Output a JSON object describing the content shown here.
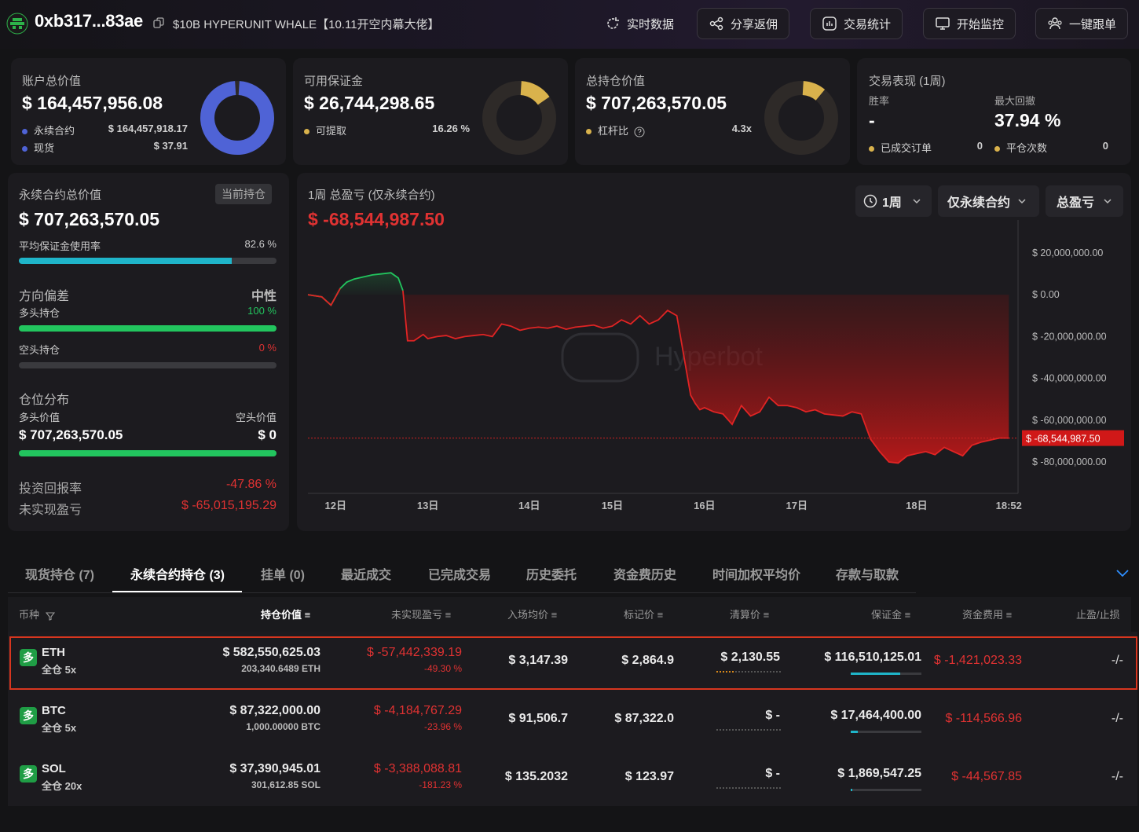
{
  "header": {
    "address": "0xb317...83ae",
    "label": "$10B HYPERUNIT WHALE【10.11开空内幕大佬】",
    "actions": {
      "realtime": "实时数据",
      "share": "分享返佣",
      "stats": "交易统计",
      "monitor": "开始监控",
      "copy_trade": "一键跟单"
    }
  },
  "summary": {
    "account": {
      "title": "账户总价值",
      "value": "$ 164,457,956.08",
      "perp_label": "永续合约",
      "perp_value": "$ 164,457,918.17",
      "spot_label": "现货",
      "spot_value": "$ 37.91",
      "donut_fraction": 0.9999
    },
    "margin": {
      "title": "可用保证金",
      "value": "$ 26,744,298.65",
      "withdrawable_label": "可提取",
      "withdrawable_pct": "16.26 %",
      "donut_fraction": 0.1626
    },
    "position": {
      "title": "总持仓价值",
      "value": "$ 707,263,570.05",
      "leverage_label": "杠杆比",
      "leverage_value": "4.3x",
      "donut_fraction": 0.12
    },
    "performance": {
      "title": "交易表现 (1周)",
      "winrate_label": "胜率",
      "winrate_value": "-",
      "drawdown_label": "最大回撤",
      "drawdown_value": "37.94 %",
      "filled_label": "已成交订单",
      "filled_value": "0",
      "closed_label": "平仓次数",
      "closed_value": "0"
    }
  },
  "perp_panel": {
    "title": "永续合约总价值",
    "tag": "当前持仓",
    "value": "$ 707,263,570.05",
    "margin_usage_label": "平均保证金使用率",
    "margin_usage_pct": "82.6 %",
    "margin_usage_fraction": 0.826,
    "direction_label": "方向偏差",
    "direction_value": "中性",
    "long_label": "多头持仓",
    "long_pct": "100 %",
    "long_fraction": 1.0,
    "short_label": "空头持仓",
    "short_pct": "0 %",
    "short_fraction": 0.0,
    "dist_label": "仓位分布",
    "long_value_label": "多头价值",
    "short_value_label": "空头价值",
    "long_value": "$ 707,263,570.05",
    "short_value": "$ 0",
    "roi_label": "投资回报率",
    "roi_value": "-47.86 %",
    "upnl_label": "未实现盈亏",
    "upnl_value": "$ -65,015,195.29"
  },
  "pnl_chart": {
    "title": "1周 总盈亏 (仅永续合约)",
    "value": "$ -68,544,987.50",
    "filters": {
      "period": "1周",
      "scope": "仅永续合约",
      "metric": "总盈亏"
    },
    "watermark": "Hyperbot",
    "current_label": "$ -68,544,987.50"
  },
  "chart_data": {
    "type": "area",
    "title": "1周 总盈亏 (仅永续合约)",
    "y_ticks": [
      "$ 20,000,000.00",
      "$ 0.00",
      "$ -20,000,000.00",
      "$ -40,000,000.00",
      "$ -60,000,000.00",
      "$ -80,000,000.00"
    ],
    "y_tick_values": [
      20000000,
      0,
      -20000000,
      -40000000,
      -60000000,
      -80000000
    ],
    "ylim": [
      -95000000,
      32000000
    ],
    "x_ticks": [
      "12日",
      "13日",
      "14日",
      "15日",
      "16日",
      "17日",
      "18日",
      "18:52"
    ],
    "x_tick_positions": [
      0.6,
      1.6,
      2.7,
      3.6,
      4.6,
      5.6,
      6.9,
      7.9
    ],
    "xlim": [
      0.3,
      8.0
    ],
    "series": [
      {
        "x": [
          0.3,
          0.45,
          0.55,
          0.65,
          0.72,
          0.8,
          0.9,
          1.0,
          1.1,
          1.2,
          1.28,
          1.33,
          1.38,
          1.45,
          1.55,
          1.6,
          1.7,
          1.8,
          1.9,
          2.0,
          2.1,
          2.2,
          2.3,
          2.4,
          2.5,
          2.6,
          2.7,
          2.8,
          2.9,
          3.0,
          3.1,
          3.2,
          3.3,
          3.4,
          3.5,
          3.6,
          3.7,
          3.8,
          3.9,
          4.0,
          4.1,
          4.2,
          4.3,
          4.45,
          4.5,
          4.55,
          4.6,
          4.7,
          4.8,
          4.9,
          5.0,
          5.1,
          5.2,
          5.3,
          5.4,
          5.5,
          5.6,
          5.7,
          5.8,
          5.9,
          6.0,
          6.1,
          6.2,
          6.3,
          6.4,
          6.5,
          6.6,
          6.7,
          6.8,
          6.9,
          7.0,
          7.1,
          7.2,
          7.3,
          7.4,
          7.5,
          7.6,
          7.7,
          7.8,
          7.9
        ],
        "y": [
          0,
          -1000000,
          -5000000,
          3000000,
          6000000,
          7500000,
          8500000,
          9500000,
          10000000,
          10500000,
          8000000,
          2000000,
          -22000000,
          -22000000,
          -19000000,
          -21000000,
          -20000000,
          -19500000,
          -21000000,
          -20000000,
          -19500000,
          -19000000,
          -20000000,
          -14000000,
          -15000000,
          -17000000,
          -16000000,
          -15500000,
          -16000000,
          -15000000,
          -16500000,
          -15500000,
          -15000000,
          -14500000,
          -16000000,
          -15000000,
          -12000000,
          -14000000,
          -10000000,
          -14000000,
          -12000000,
          -7500000,
          -10000000,
          -48000000,
          -52000000,
          -55000000,
          -54000000,
          -56000000,
          -57000000,
          -62000000,
          -53000000,
          -58000000,
          -56000000,
          -49000000,
          -53000000,
          -53000000,
          -54000000,
          -56000000,
          -55000000,
          -57000000,
          -57500000,
          -58000000,
          -56000000,
          -57000000,
          -69000000,
          -75000000,
          -80000000,
          -80500000,
          -77000000,
          -76000000,
          -75000000,
          -76500000,
          -73000000,
          -75000000,
          -77000000,
          -72000000,
          -70500000,
          -69500000,
          -68500000,
          -68544987.5
        ]
      }
    ],
    "green_until_x": 1.33,
    "current_value": -68544987.5
  },
  "tabs": [
    "现货持仓 (7)",
    "永续合约持仓 (3)",
    "挂单 (0)",
    "最近成交",
    "已完成交易",
    "历史委托",
    "资金费历史",
    "时间加权平均价",
    "存款与取款"
  ],
  "table": {
    "headers": {
      "coin": "币种",
      "value": "持仓价值",
      "upnl": "未实现盈亏",
      "entry": "入场均价",
      "mark": "标记价",
      "liq": "清算价",
      "margin": "保证金",
      "funding": "资金费用",
      "tpsl": "止盈/止损"
    },
    "rows": [
      {
        "side": "多",
        "coin": "ETH",
        "mode": "全仓 5x",
        "value": "$ 582,550,625.03",
        "size": "203,340.6489 ETH",
        "upnl": "$ -57,442,339.19",
        "upnl_pct": "-49.30 %",
        "entry": "$ 3,147.39",
        "mark": "$ 2,864.9",
        "liq": "$ 2,130.55",
        "margin": "$ 116,510,125.01",
        "margin_fraction": 0.7,
        "funding": "$ -1,421,023.33",
        "tpsl": "-/-"
      },
      {
        "side": "多",
        "coin": "BTC",
        "mode": "全仓 5x",
        "value": "$ 87,322,000.00",
        "size": "1,000.00000 BTC",
        "upnl": "$ -4,184,767.29",
        "upnl_pct": "-23.96 %",
        "entry": "$ 91,506.7",
        "mark": "$ 87,322.0",
        "liq": "$ -",
        "margin": "$ 17,464,400.00",
        "margin_fraction": 0.1,
        "funding": "$ -114,566.96",
        "tpsl": "-/-"
      },
      {
        "side": "多",
        "coin": "SOL",
        "mode": "全仓 20x",
        "value": "$ 37,390,945.01",
        "size": "301,612.85 SOL",
        "upnl": "$ -3,388,088.81",
        "upnl_pct": "-181.23 %",
        "entry": "$ 135.2032",
        "mark": "$ 123.97",
        "liq": "$ -",
        "margin": "$ 1,869,547.25",
        "margin_fraction": 0.02,
        "funding": "$ -44,567.85",
        "tpsl": "-/-"
      }
    ]
  },
  "colors": {
    "accent_blue": "#4f63d6",
    "gold": "#d9b24c",
    "green": "#22c55e",
    "red": "#e03232",
    "teal": "#1fb5c9"
  }
}
